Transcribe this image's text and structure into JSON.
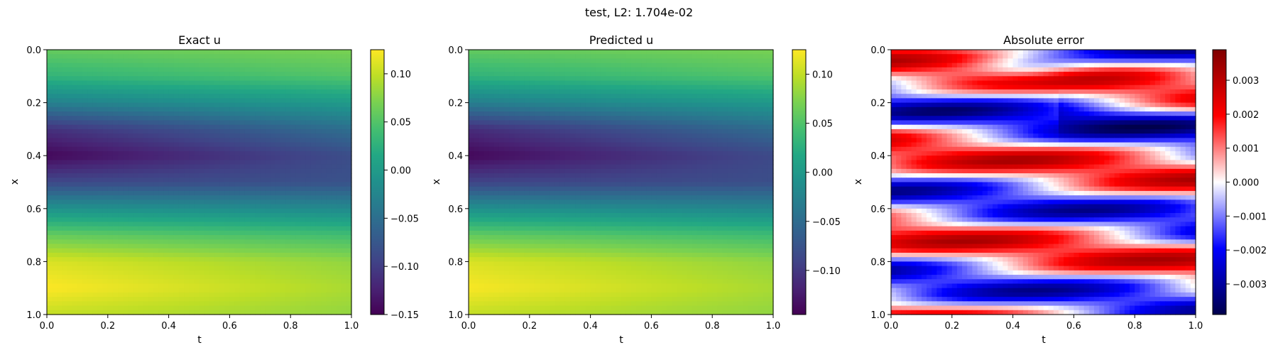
{
  "figure": {
    "suptitle": "test, L2: 1.704e-02"
  },
  "chart_data": [
    {
      "type": "heatmap",
      "title": "Exact u",
      "xlabel": "t",
      "ylabel": "x",
      "xlim": [
        0.0,
        1.0
      ],
      "ylim": [
        1.0,
        0.0
      ],
      "xticks": [
        "0.0",
        "0.2",
        "0.4",
        "0.6",
        "0.8",
        "1.0"
      ],
      "yticks": [
        "0.0",
        "0.2",
        "0.4",
        "0.6",
        "0.8",
        "1.0"
      ],
      "colormap": "viridis",
      "grid": false,
      "colorbar": {
        "range": [
          -0.15,
          0.125
        ],
        "ticks": [
          "0.10",
          "0.05",
          "0.00",
          "−0.05",
          "−0.10",
          "−0.15"
        ],
        "tick_values": [
          0.1,
          0.05,
          0.0,
          -0.05,
          -0.1,
          -0.15
        ]
      },
      "field_profile_x": [
        0.0,
        0.1,
        0.2,
        0.3,
        0.4,
        0.5,
        0.6,
        0.7,
        0.8,
        0.9,
        1.0
      ],
      "field_profile_values_t0": [
        0.06,
        0.03,
        -0.03,
        -0.11,
        -0.145,
        -0.09,
        -0.01,
        0.06,
        0.11,
        0.125,
        0.1
      ],
      "field_profile_values_t1": [
        0.07,
        0.05,
        0.0,
        -0.05,
        -0.085,
        -0.08,
        -0.02,
        0.04,
        0.08,
        0.09,
        0.08
      ]
    },
    {
      "type": "heatmap",
      "title": "Predicted u",
      "xlabel": "t",
      "ylabel": "x",
      "xlim": [
        0.0,
        1.0
      ],
      "ylim": [
        1.0,
        0.0
      ],
      "xticks": [
        "0.0",
        "0.2",
        "0.4",
        "0.6",
        "0.8",
        "1.0"
      ],
      "yticks": [
        "0.0",
        "0.2",
        "0.4",
        "0.6",
        "0.8",
        "1.0"
      ],
      "colormap": "viridis",
      "grid": false,
      "colorbar": {
        "range": [
          -0.145,
          0.125
        ],
        "ticks": [
          "0.10",
          "0.05",
          "0.00",
          "−0.05",
          "−0.10"
        ],
        "tick_values": [
          0.1,
          0.05,
          0.0,
          -0.05,
          -0.1
        ]
      },
      "field_profile_x": [
        0.0,
        0.1,
        0.2,
        0.3,
        0.4,
        0.5,
        0.6,
        0.7,
        0.8,
        0.9,
        1.0
      ],
      "field_profile_values_t0": [
        0.06,
        0.03,
        -0.03,
        -0.11,
        -0.14,
        -0.09,
        -0.01,
        0.06,
        0.11,
        0.123,
        0.1
      ],
      "field_profile_values_t1": [
        0.07,
        0.05,
        0.0,
        -0.05,
        -0.085,
        -0.08,
        -0.02,
        0.04,
        0.08,
        0.09,
        0.08
      ]
    },
    {
      "type": "heatmap",
      "title": "Absolute error",
      "xlabel": "t",
      "ylabel": "x",
      "xlim": [
        0.0,
        1.0
      ],
      "ylim": [
        1.0,
        0.0
      ],
      "xticks": [
        "0.0",
        "0.2",
        "0.4",
        "0.6",
        "0.8",
        "1.0"
      ],
      "yticks": [
        "0.0",
        "0.2",
        "0.4",
        "0.6",
        "0.8",
        "1.0"
      ],
      "colormap": "seismic",
      "grid": false,
      "colorbar": {
        "range": [
          -0.0039,
          0.0039
        ],
        "ticks": [
          "0.003",
          "0.002",
          "0.001",
          "0.000",
          "−0.001",
          "−0.002",
          "−0.003"
        ],
        "tick_values": [
          0.003,
          0.002,
          0.001,
          0.0,
          -0.001,
          -0.002,
          -0.003
        ]
      }
    }
  ]
}
